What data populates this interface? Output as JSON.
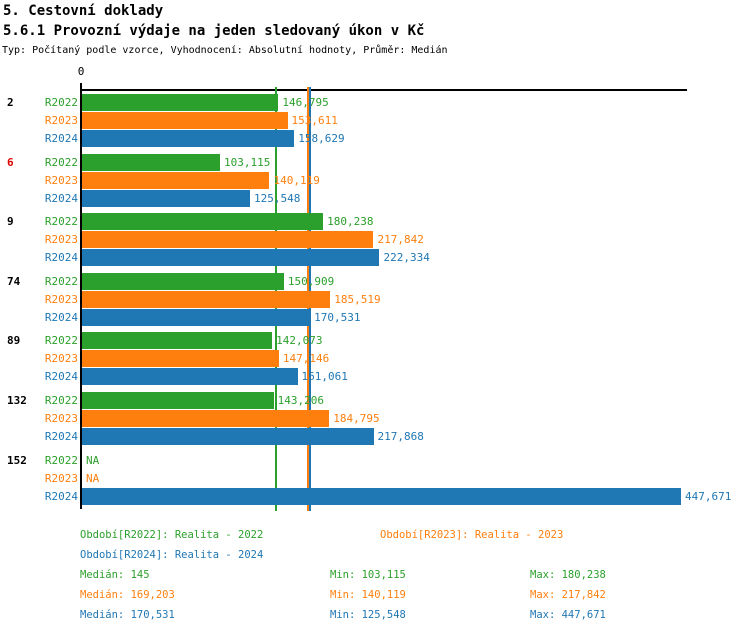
{
  "header": {
    "title_line1": "5. Cestovní doklady",
    "title_line2": "5.6.1 Provozní výdaje na jeden sledovaný úkon v Kč",
    "subtitle": "Typ: Počítaný podle vzorce, Vyhodnocení: Absolutní hodnoty, Průměr: Medián"
  },
  "axis": {
    "zero_label": "0"
  },
  "chart_data": {
    "type": "bar",
    "orientation": "horizontal",
    "title": "5.6.1 Provozní výdaje na jeden sledovaný úkon v Kč",
    "x_axis": {
      "zero_label": "0",
      "approx_max": 500000,
      "gridlines": false
    },
    "categories": [
      {
        "label": "2",
        "color": "#000000"
      },
      {
        "label": "6",
        "color": "#e00000"
      },
      {
        "label": "9",
        "color": "#000000"
      },
      {
        "label": "74",
        "color": "#000000"
      },
      {
        "label": "89",
        "color": "#000000"
      },
      {
        "label": "132",
        "color": "#000000"
      },
      {
        "label": "152",
        "color": "#000000"
      }
    ],
    "series": [
      {
        "name": "R2022",
        "period_label": "Realita - 2022",
        "color": "#2ca02c",
        "values": [
          146795,
          103115,
          180238,
          150909,
          142073,
          143206,
          null
        ],
        "value_labels": [
          "146,795",
          "103,115",
          "180,238",
          "150,909",
          "142,073",
          "143,206",
          "NA"
        ],
        "median_value": 145000,
        "median_display": "145",
        "min_display": "103,115",
        "max_display": "180,238"
      },
      {
        "name": "R2023",
        "period_label": "Realita - 2023",
        "color": "#ff7f0e",
        "values": [
          153611,
          140119,
          217842,
          185519,
          147146,
          184795,
          null
        ],
        "value_labels": [
          "153,611",
          "140,119",
          "217,842",
          "185,519",
          "147,146",
          "184,795",
          "NA"
        ],
        "median_value": 169203,
        "median_display": "169,203",
        "min_display": "140,119",
        "max_display": "217,842"
      },
      {
        "name": "R2024",
        "period_label": "Realita - 2024",
        "color": "#1f77b4",
        "values": [
          158629,
          125548,
          222334,
          170531,
          161061,
          217868,
          447671
        ],
        "value_labels": [
          "158,629",
          "125,548",
          "222,334",
          "170,531",
          "161,061",
          "217,868",
          "447,671"
        ],
        "median_value": 170531,
        "median_display": "170,531",
        "min_display": "125,548",
        "max_display": "447,671"
      }
    ]
  },
  "legend": {
    "periods": [
      {
        "label": "Období[R2022]: Realita - 2022",
        "color": "#2ca02c"
      },
      {
        "label": "Období[R2023]: Realita - 2023",
        "color": "#ff7f0e"
      },
      {
        "label": "Období[R2024]: Realita - 2024",
        "color": "#1f77b4"
      }
    ],
    "stats": [
      {
        "median": "Medián: 145",
        "min": "Min: 103,115",
        "max": "Max: 180,238",
        "color": "#2ca02c"
      },
      {
        "median": "Medián: 169,203",
        "min": "Min: 140,119",
        "max": "Max: 217,842",
        "color": "#ff7f0e"
      },
      {
        "median": "Medián: 170,531",
        "min": "Min: 125,548",
        "max": "Max: 447,671",
        "color": "#1f77b4"
      }
    ]
  }
}
